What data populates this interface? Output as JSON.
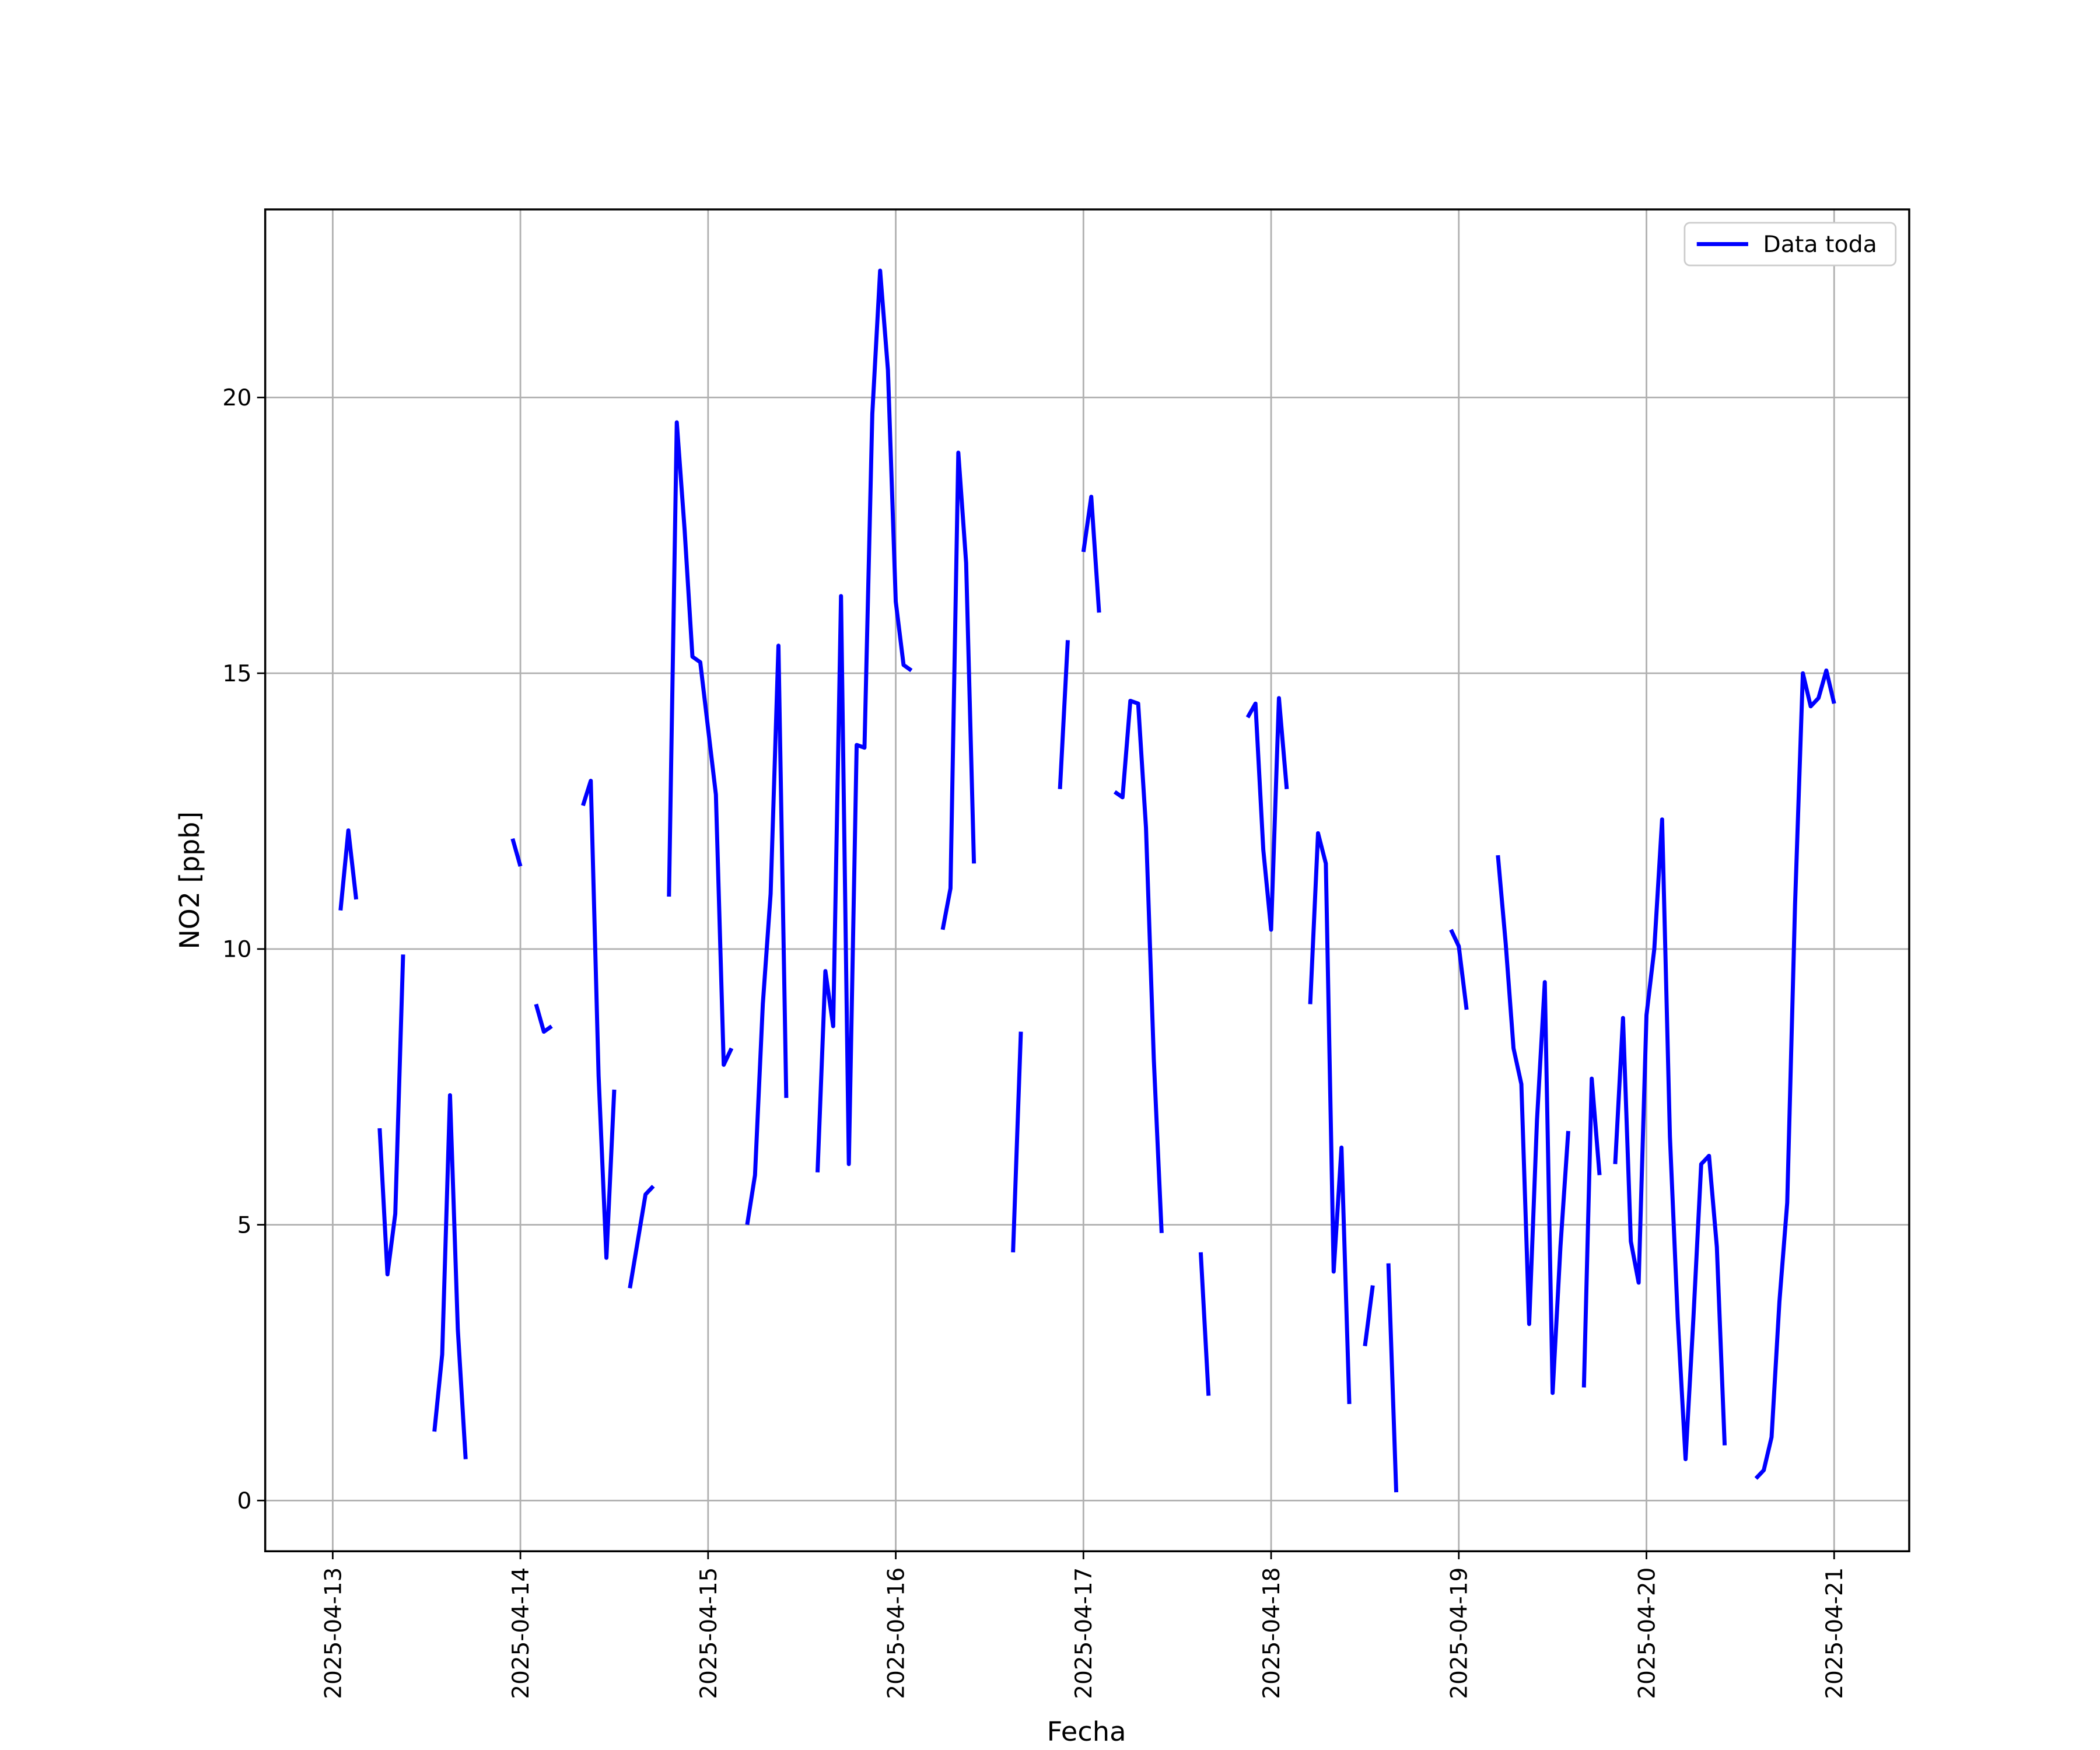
{
  "chart_data": {
    "type": "line",
    "xlabel": "Fecha",
    "ylabel": "NO2 [ppb]",
    "xlim": [
      "2025-04-12 15:22",
      "2025-04-21 09:36"
    ],
    "xticks": [
      "2025-04-13",
      "2025-04-14",
      "2025-04-15",
      "2025-04-16",
      "2025-04-17",
      "2025-04-18",
      "2025-04-19",
      "2025-04-20",
      "2025-04-21"
    ],
    "ylim": [
      -0.92,
      23.41
    ],
    "yticks": [
      0,
      5,
      10,
      15,
      20
    ],
    "grid": true,
    "legend": "upper right",
    "x": [
      "2025-04-13 01:00",
      "2025-04-13 02:00",
      "2025-04-13 03:00",
      "2025-04-13 04:00",
      "2025-04-13 06:00",
      "2025-04-13 07:00",
      "2025-04-13 08:00",
      "2025-04-13 09:00",
      "2025-04-13 10:00",
      "2025-04-13 13:00",
      "2025-04-13 14:00",
      "2025-04-13 15:00",
      "2025-04-13 16:00",
      "2025-04-13 17:00",
      "2025-04-13 18:00",
      "2025-04-13 23:00",
      "2025-04-14 00:00",
      "2025-04-14 01:00",
      "2025-04-14 02:00",
      "2025-04-14 03:00",
      "2025-04-14 04:00",
      "2025-04-14 05:00",
      "2025-04-14 08:00",
      "2025-04-14 09:00",
      "2025-04-14 10:00",
      "2025-04-14 11:00",
      "2025-04-14 12:00",
      "2025-04-14 13:00",
      "2025-04-14 14:00",
      "2025-04-14 15:00",
      "2025-04-14 16:00",
      "2025-04-14 17:00",
      "2025-04-14 18:00",
      "2025-04-14 19:00",
      "2025-04-14 20:00",
      "2025-04-14 21:00",
      "2025-04-14 22:00",
      "2025-04-14 23:00",
      "2025-04-15 00:00",
      "2025-04-15 01:00",
      "2025-04-15 02:00",
      "2025-04-15 03:00",
      "2025-04-15 04:00",
      "2025-04-15 05:00",
      "2025-04-15 06:00",
      "2025-04-15 07:00",
      "2025-04-15 08:00",
      "2025-04-15 09:00",
      "2025-04-15 10:00",
      "2025-04-15 11:00",
      "2025-04-15 14:00",
      "2025-04-15 15:00",
      "2025-04-15 16:00",
      "2025-04-15 17:00",
      "2025-04-15 18:00",
      "2025-04-15 19:00",
      "2025-04-15 20:00",
      "2025-04-15 21:00",
      "2025-04-15 22:00",
      "2025-04-15 23:00",
      "2025-04-16 00:00",
      "2025-04-16 01:00",
      "2025-04-16 02:00",
      "2025-04-16 03:00",
      "2025-04-16 06:00",
      "2025-04-16 07:00",
      "2025-04-16 08:00",
      "2025-04-16 09:00",
      "2025-04-16 10:00",
      "2025-04-16 11:00",
      "2025-04-16 15:00",
      "2025-04-16 16:00",
      "2025-04-16 17:00",
      "2025-04-16 21:00",
      "2025-04-16 22:00",
      "2025-04-16 23:00",
      "2025-04-17 00:00",
      "2025-04-17 01:00",
      "2025-04-17 02:00",
      "2025-04-17 03:00",
      "2025-04-17 04:00",
      "2025-04-17 05:00",
      "2025-04-17 06:00",
      "2025-04-17 07:00",
      "2025-04-17 08:00",
      "2025-04-17 09:00",
      "2025-04-17 10:00",
      "2025-04-17 11:00",
      "2025-04-17 15:00",
      "2025-04-17 16:00",
      "2025-04-17 17:00",
      "2025-04-17 21:00",
      "2025-04-17 22:00",
      "2025-04-17 23:00",
      "2025-04-18 00:00",
      "2025-04-18 01:00",
      "2025-04-18 02:00",
      "2025-04-18 03:00",
      "2025-04-18 05:00",
      "2025-04-18 06:00",
      "2025-04-18 07:00",
      "2025-04-18 08:00",
      "2025-04-18 09:00",
      "2025-04-18 10:00",
      "2025-04-18 11:00",
      "2025-04-18 12:00",
      "2025-04-18 13:00",
      "2025-04-18 14:00",
      "2025-04-18 15:00",
      "2025-04-18 16:00",
      "2025-04-18 17:00",
      "2025-04-18 23:00",
      "2025-04-19 00:00",
      "2025-04-19 01:00",
      "2025-04-19 02:00",
      "2025-04-19 05:00",
      "2025-04-19 06:00",
      "2025-04-19 07:00",
      "2025-04-19 08:00",
      "2025-04-19 09:00",
      "2025-04-19 10:00",
      "2025-04-19 11:00",
      "2025-04-19 12:00",
      "2025-04-19 13:00",
      "2025-04-19 14:00",
      "2025-04-19 15:00",
      "2025-04-19 16:00",
      "2025-04-19 17:00",
      "2025-04-19 18:00",
      "2025-04-19 19:00",
      "2025-04-19 20:00",
      "2025-04-19 21:00",
      "2025-04-19 22:00",
      "2025-04-19 23:00",
      "2025-04-20 00:00",
      "2025-04-20 01:00",
      "2025-04-20 02:00",
      "2025-04-20 03:00",
      "2025-04-20 04:00",
      "2025-04-20 05:00",
      "2025-04-20 06:00",
      "2025-04-20 07:00",
      "2025-04-20 08:00",
      "2025-04-20 09:00",
      "2025-04-20 10:00",
      "2025-04-20 11:00",
      "2025-04-20 14:00",
      "2025-04-20 15:00",
      "2025-04-20 16:00",
      "2025-04-20 17:00",
      "2025-04-20 18:00",
      "2025-04-20 19:00",
      "2025-04-20 20:00",
      "2025-04-20 21:00",
      "2025-04-20 22:00",
      "2025-04-20 23:00",
      "2025-04-21 00:00"
    ],
    "series": [
      {
        "name": "Data toda",
        "color": "#0000ff",
        "values": [
          10.7,
          12.15,
          10.9,
          null,
          6.75,
          4.1,
          5.2,
          9.9,
          null,
          1.25,
          2.65,
          7.35,
          3.1,
          0.75,
          null,
          12.0,
          11.5,
          null,
          9.0,
          8.5,
          8.6,
          null,
          12.6,
          13.05,
          7.7,
          4.4,
          7.45,
          null,
          3.85,
          4.7,
          5.55,
          5.7,
          null,
          10.95,
          19.55,
          17.6,
          15.3,
          15.2,
          14.0,
          12.8,
          7.9,
          8.2,
          null,
          5.0,
          5.9,
          9.0,
          11.0,
          15.5,
          7.3,
          null,
          5.95,
          9.6,
          8.6,
          16.4,
          6.1,
          13.7,
          13.65,
          19.7,
          22.3,
          20.5,
          16.3,
          15.15,
          15.05,
          null,
          10.35,
          11.1,
          19.0,
          17.0,
          11.55,
          null,
          4.5,
          8.5,
          null,
          12.9,
          15.6,
          null,
          17.2,
          18.2,
          16.1,
          null,
          12.85,
          12.75,
          14.5,
          14.45,
          12.2,
          8.0,
          4.85,
          null,
          4.5,
          1.9,
          null,
          14.2,
          14.45,
          11.8,
          10.35,
          14.55,
          12.9,
          null,
          9.0,
          12.1,
          11.55,
          4.15,
          6.4,
          1.75,
          null,
          2.8,
          3.9,
          null,
          4.3,
          0.15,
          null,
          10.35,
          10.05,
          8.9,
          null,
          11.7,
          10.1,
          8.2,
          7.55,
          3.2,
          6.9,
          9.4,
          1.95,
          4.6,
          6.7,
          null,
          2.05,
          7.65,
          5.9,
          null,
          6.1,
          8.75,
          4.7,
          3.95,
          8.8,
          10.0,
          12.35,
          6.6,
          3.3,
          0.75,
          3.3,
          6.1,
          6.25,
          4.6,
          1.0,
          null,
          0.4,
          0.55,
          1.15,
          3.6,
          5.4,
          10.8,
          15.0,
          14.4,
          14.55,
          15.05,
          14.45
        ]
      }
    ]
  }
}
